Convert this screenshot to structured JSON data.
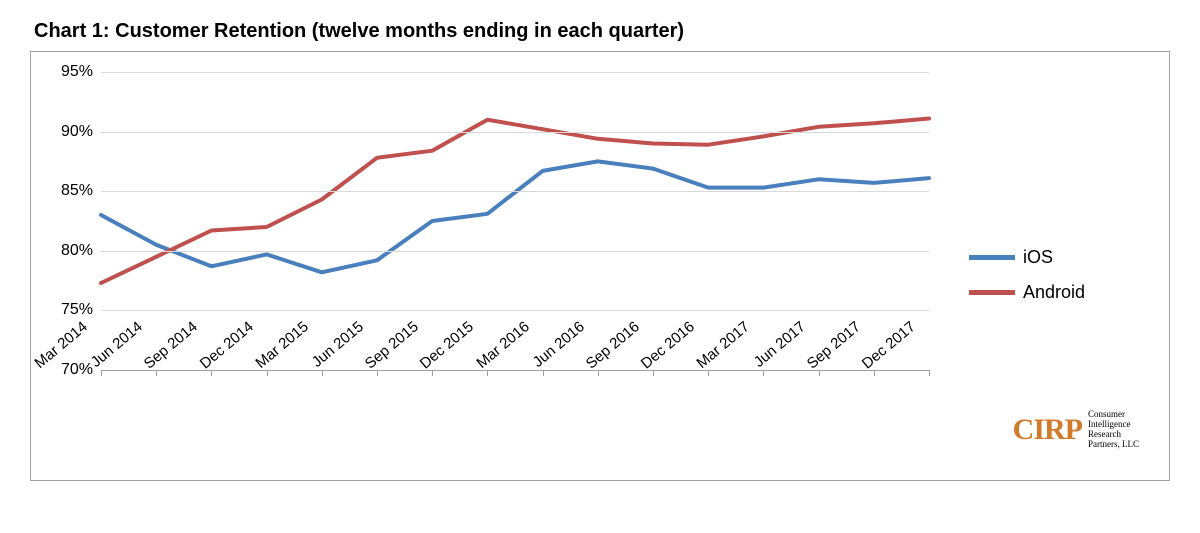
{
  "chart": {
    "type": "line",
    "title": "Chart 1: Customer Retention (twelve months ending in each quarter)",
    "title_fontsize": 20,
    "background_color": "#ffffff",
    "border_color": "#a0a0a0",
    "grid_color": "#d9d9d9",
    "axis_label_fontsize": 16,
    "xaxis": {
      "categories": [
        "Mar 2014",
        "Jun 2014",
        "Sep 2014",
        "Dec 2014",
        "Mar 2015",
        "Jun 2015",
        "Sep 2015",
        "Dec 2015",
        "Mar 2016",
        "Jun 2016",
        "Sep 2016",
        "Dec 2016",
        "Mar 2017",
        "Jun 2017",
        "Sep 2017",
        "Dec 2017"
      ],
      "rotation_deg": -40
    },
    "yaxis": {
      "ymin": 70,
      "ymax": 95,
      "ytick_step": 5,
      "tick_format": "{v}%"
    },
    "line_width": 4,
    "series": [
      {
        "name": "iOS",
        "color": "#4a7fbd",
        "values": [
          83.0,
          80.5,
          78.7,
          79.7,
          78.2,
          79.2,
          82.5,
          83.1,
          86.7,
          87.5,
          86.9,
          85.3,
          85.3,
          86.0,
          85.7,
          86.1
        ]
      },
      {
        "name": "Android",
        "color": "#c0504d",
        "values": [
          77.3,
          79.5,
          81.7,
          82.0,
          84.3,
          87.8,
          88.4,
          91.0,
          90.2,
          89.4,
          89.0,
          88.9,
          89.6,
          90.4,
          90.7,
          91.1
        ]
      }
    ],
    "legend": {
      "position": "right",
      "fontsize": 18
    },
    "attribution": {
      "logo_text": "CIRP",
      "logo_color": "#d17a2a",
      "subtitle_lines": [
        "Consumer",
        "Intelligence",
        "Research",
        "Partners, LLC"
      ]
    }
  }
}
